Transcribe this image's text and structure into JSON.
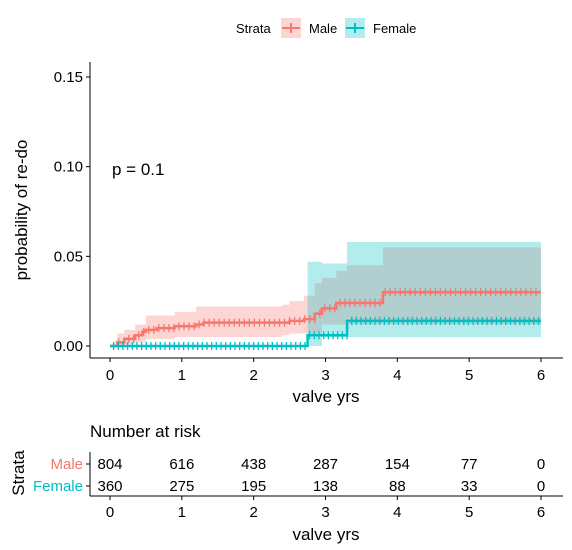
{
  "chart_data": [
    {
      "type": "line",
      "subtype": "kaplan-meier step curve with confidence bands",
      "xlabel": "valve yrs",
      "ylabel": "probability of re-do",
      "xlim": [
        0,
        6
      ],
      "ylim": [
        0,
        0.15
      ],
      "x_ticks": [
        "0",
        "1",
        "2",
        "3",
        "4",
        "5",
        "6"
      ],
      "y_ticks": [
        "0.00",
        "0.05",
        "0.10",
        "0.15"
      ],
      "grid": false,
      "annotation": "p = 0.1",
      "legend": {
        "title": "Strata",
        "placement": "top",
        "entries": [
          {
            "label": "Male",
            "color": "#F8766D"
          },
          {
            "label": "Female",
            "color": "#00BFC4"
          }
        ]
      },
      "series": [
        {
          "name": "Male",
          "color": "#F8766D",
          "steps": [
            [
              0,
              0.0
            ],
            [
              0.1,
              0.002
            ],
            [
              0.2,
              0.004
            ],
            [
              0.35,
              0.006
            ],
            [
              0.45,
              0.008
            ],
            [
              0.5,
              0.009
            ],
            [
              0.65,
              0.01
            ],
            [
              0.9,
              0.011
            ],
            [
              1.2,
              0.012
            ],
            [
              1.3,
              0.013
            ],
            [
              2.5,
              0.014
            ],
            [
              2.7,
              0.015
            ],
            [
              2.85,
              0.018
            ],
            [
              2.95,
              0.021
            ],
            [
              3.15,
              0.024
            ],
            [
              3.8,
              0.03
            ],
            [
              6.0,
              0.03
            ]
          ],
          "ci_lower": [
            [
              0,
              0.0
            ],
            [
              0.2,
              0.0
            ],
            [
              0.35,
              0.001
            ],
            [
              0.5,
              0.002
            ],
            [
              0.9,
              0.004
            ],
            [
              1.2,
              0.005
            ],
            [
              2.0,
              0.005
            ],
            [
              2.5,
              0.006
            ],
            [
              2.7,
              0.007
            ],
            [
              3.15,
              0.012
            ],
            [
              3.8,
              0.012
            ],
            [
              6.0,
              0.012
            ]
          ],
          "ci_upper": [
            [
              0,
              0.0
            ],
            [
              0.1,
              0.007
            ],
            [
              0.2,
              0.009
            ],
            [
              0.35,
              0.012
            ],
            [
              0.5,
              0.017
            ],
            [
              0.9,
              0.019
            ],
            [
              1.2,
              0.022
            ],
            [
              2.4,
              0.023
            ],
            [
              2.5,
              0.025
            ],
            [
              2.7,
              0.028
            ],
            [
              2.85,
              0.035
            ],
            [
              2.95,
              0.038
            ],
            [
              3.15,
              0.042
            ],
            [
              3.3,
              0.045
            ],
            [
              3.8,
              0.055
            ],
            [
              6.0,
              0.055
            ]
          ]
        },
        {
          "name": "Female",
          "color": "#00BFC4",
          "steps": [
            [
              0,
              0.0
            ],
            [
              2.75,
              0.006
            ],
            [
              3.3,
              0.014
            ],
            [
              6.0,
              0.014
            ]
          ],
          "ci_lower": [
            [
              0,
              0.0
            ],
            [
              3.3,
              0.005
            ],
            [
              6.0,
              0.005
            ]
          ],
          "ci_upper": [
            [
              0,
              0.0
            ],
            [
              2.75,
              0.047
            ],
            [
              2.95,
              0.046
            ],
            [
              3.3,
              0.058
            ],
            [
              6.0,
              0.058
            ]
          ]
        }
      ]
    },
    {
      "type": "table",
      "title": "Number at risk",
      "ylabel": "Strata",
      "xlabel": "valve yrs",
      "x_ticks": [
        "0",
        "1",
        "2",
        "3",
        "4",
        "5",
        "6"
      ],
      "rows": [
        {
          "label": "Male",
          "color": "#F8766D",
          "values": [
            "804",
            "616",
            "438",
            "287",
            "154",
            "77",
            "0"
          ]
        },
        {
          "label": "Female",
          "color": "#00BFC4",
          "values": [
            "360",
            "275",
            "195",
            "138",
            "88",
            "33",
            "0"
          ]
        }
      ]
    }
  ]
}
